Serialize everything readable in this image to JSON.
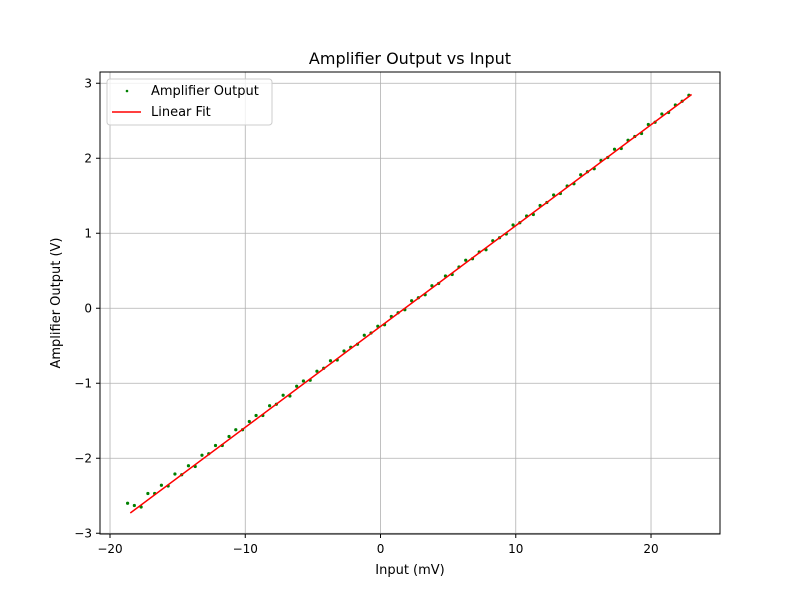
{
  "chart_data": {
    "type": "scatter",
    "title": "Amplifier Output vs Input",
    "xlabel": "Input (mV)",
    "ylabel": "Amplifier Output (V)",
    "xlim": [
      -20.74,
      25.1
    ],
    "ylim": [
      -3.01,
      3.15
    ],
    "xticks": [
      -20,
      -10,
      0,
      10,
      20
    ],
    "yticks": [
      -3,
      -2,
      -1,
      0,
      1,
      2,
      3
    ],
    "xtick_labels": [
      "−20",
      "−10",
      "0",
      "10",
      "20"
    ],
    "ytick_labels": [
      "−3",
      "−2",
      "−1",
      "0",
      "1",
      "2",
      "3"
    ],
    "grid": true,
    "legend_position": "top-left",
    "series": [
      {
        "name": "Amplifier Output",
        "kind": "scatter",
        "color": "#008000",
        "x": [
          -18.7,
          -18.2,
          -17.7,
          -17.2,
          -16.7,
          -16.2,
          -15.7,
          -15.2,
          -14.7,
          -14.2,
          -13.7,
          -13.2,
          -12.7,
          -12.2,
          -11.7,
          -11.2,
          -10.7,
          -10.2,
          -9.7,
          -9.2,
          -8.7,
          -8.2,
          -7.7,
          -7.2,
          -6.7,
          -6.2,
          -5.7,
          -5.2,
          -4.7,
          -4.2,
          -3.7,
          -3.2,
          -2.7,
          -2.2,
          -1.7,
          -1.2,
          -0.7,
          -0.2,
          0.3,
          0.8,
          1.3,
          1.8,
          2.3,
          2.8,
          3.3,
          3.8,
          4.3,
          4.8,
          5.3,
          5.8,
          6.3,
          6.8,
          7.3,
          7.8,
          8.3,
          8.8,
          9.3,
          9.8,
          10.3,
          10.8,
          11.3,
          11.8,
          12.3,
          12.8,
          13.3,
          13.8,
          14.3,
          14.8,
          15.3,
          15.8,
          16.3,
          16.8,
          17.3,
          17.8,
          18.3,
          18.8,
          19.3,
          19.8,
          20.3,
          20.8,
          21.3,
          21.8,
          22.3,
          22.8
        ],
        "y": [
          -2.6,
          -2.63,
          -2.65,
          -2.47,
          -2.47,
          -2.36,
          -2.37,
          -2.21,
          -2.22,
          -2.1,
          -2.11,
          -1.96,
          -1.94,
          -1.83,
          -1.83,
          -1.71,
          -1.62,
          -1.62,
          -1.51,
          -1.43,
          -1.43,
          -1.3,
          -1.28,
          -1.16,
          -1.17,
          -1.04,
          -0.97,
          -0.96,
          -0.84,
          -0.8,
          -0.7,
          -0.69,
          -0.57,
          -0.52,
          -0.48,
          -0.36,
          -0.33,
          -0.24,
          -0.22,
          -0.11,
          -0.06,
          -0.02,
          0.1,
          0.14,
          0.18,
          0.3,
          0.33,
          0.43,
          0.45,
          0.55,
          0.64,
          0.66,
          0.75,
          0.78,
          0.9,
          0.94,
          0.99,
          1.11,
          1.14,
          1.23,
          1.25,
          1.37,
          1.41,
          1.51,
          1.53,
          1.63,
          1.66,
          1.78,
          1.82,
          1.86,
          1.97,
          2.01,
          2.12,
          2.13,
          2.24,
          2.29,
          2.33,
          2.45,
          2.48,
          2.59,
          2.61,
          2.71,
          2.76,
          2.84
        ]
      },
      {
        "name": "Linear Fit",
        "kind": "line",
        "color": "#ff0000",
        "x": [
          -18.5,
          23.0
        ],
        "y": [
          -2.73,
          2.85
        ]
      }
    ]
  }
}
